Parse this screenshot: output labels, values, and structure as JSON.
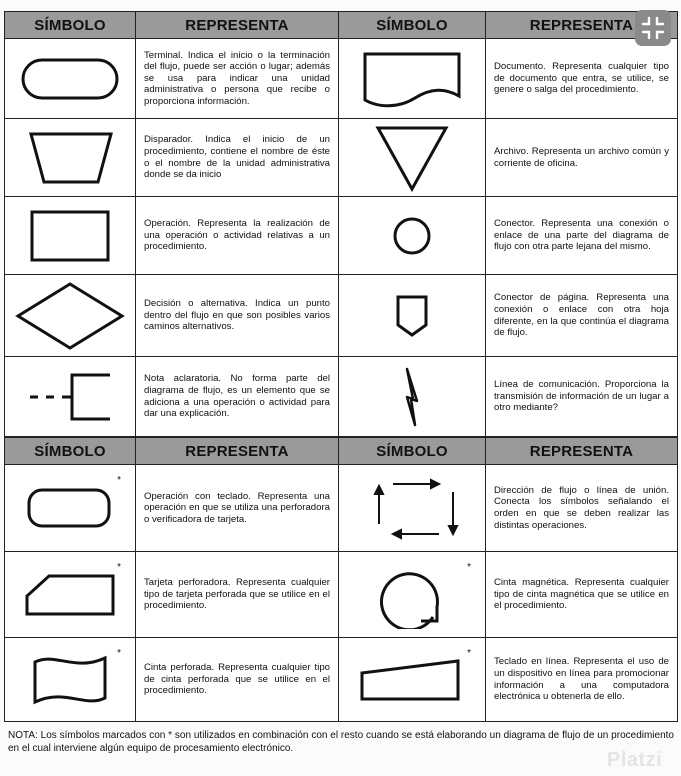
{
  "headers": {
    "col1": "SÍMBOLO",
    "col2": "REPRESENTA",
    "col3": "SÍMBOLO",
    "col4": "REPRESENTA"
  },
  "section1": {
    "rows": [
      {
        "left": {
          "icon": "terminal-symbol-icon",
          "text": "Terminal. Indica el inicio o la terminación del flujo, puede ser acción o lugar; además se usa para indicar una unidad administrativa o persona que recibe o proporciona información."
        },
        "right": {
          "icon": "document-symbol-icon",
          "text": "Documento. Representa cualquier tipo de documento que entra, se utilice, se genere o salga del procedimiento."
        }
      },
      {
        "left": {
          "icon": "trigger-symbol-icon",
          "text": "Disparador. Indica el inicio de un procedimiento, contiene el nombre de éste o el nombre de la unidad administrativa donde se da inicio"
        },
        "right": {
          "icon": "archive-symbol-icon",
          "text": "Archivo. Representa un archivo común y corriente de oficina."
        }
      },
      {
        "left": {
          "icon": "operation-symbol-icon",
          "text": "Operación. Representa la realización de una operación o actividad relativas a un procedimiento."
        },
        "right": {
          "icon": "connector-symbol-icon",
          "text": "Conector. Representa una conexión o enlace de una parte del diagrama de flujo con otra parte lejana del mismo."
        }
      },
      {
        "left": {
          "icon": "decision-symbol-icon",
          "text": "Decisión o alternativa. Indica un punto dentro del flujo en que son posibles varios caminos alternativos."
        },
        "right": {
          "icon": "page-connector-symbol-icon",
          "text": "Conector de página. Representa una conexión o enlace con otra hoja diferente, en la que continúa el diagrama de flujo."
        }
      },
      {
        "left": {
          "icon": "annotation-symbol-icon",
          "text": "Nota aclaratoria. No forma parte del diagrama de flujo, es un elemento que se adiciona a una operación o actividad para dar una explicación."
        },
        "right": {
          "icon": "communication-line-symbol-icon",
          "text": "Línea de comunicación. Proporciona la transmisión de información de un lugar a otro mediante?"
        }
      }
    ]
  },
  "section2": {
    "rows": [
      {
        "left": {
          "icon": "keyboard-operation-symbol-icon",
          "star": "*",
          "text": "Operación con teclado. Representa una operación en que se utiliza una perforadora o verificadora de tarjeta."
        },
        "right": {
          "icon": "flow-direction-symbol-icon",
          "star": "",
          "text": "Dirección de flujo o línea de unión. Conecta los símbolos señalando el orden en que se deben realizar las distintas operaciones."
        }
      },
      {
        "left": {
          "icon": "punched-card-symbol-icon",
          "star": "*",
          "text": "Tarjeta perforadora. Representa cualquier tipo de tarjeta perforada que se utilice en el procedimiento."
        },
        "right": {
          "icon": "magnetic-tape-symbol-icon",
          "star": "*",
          "text": "Cinta magnética. Representa cualquier tipo de cinta magnética que se utilice en el procedimiento."
        }
      },
      {
        "left": {
          "icon": "punched-tape-symbol-icon",
          "star": "*",
          "text": "Cinta perforada. Representa cualquier tipo de cinta perforada que se utilice en el procedimiento."
        },
        "right": {
          "icon": "online-keyboard-symbol-icon",
          "star": "*",
          "text": "Teclado en línea. Representa el uso de un dispositivo en línea para promocionar información a una computadora electrónica u obtenerla de ello."
        }
      }
    ]
  },
  "note": "NOTA: Los símbolos marcados con * son utilizados en combinación con el resto cuando se está elaborando un diagrama de flujo de un procedimiento en el cual interviene algún equipo de procesamiento electrónico.",
  "watermark": "Platzi",
  "expand_button": {
    "icon": "collapse-fullscreen-icon"
  },
  "colors": {
    "header_bg": "#9a9a9a",
    "border": "#222222",
    "button_bg": "#8a8a8a"
  }
}
